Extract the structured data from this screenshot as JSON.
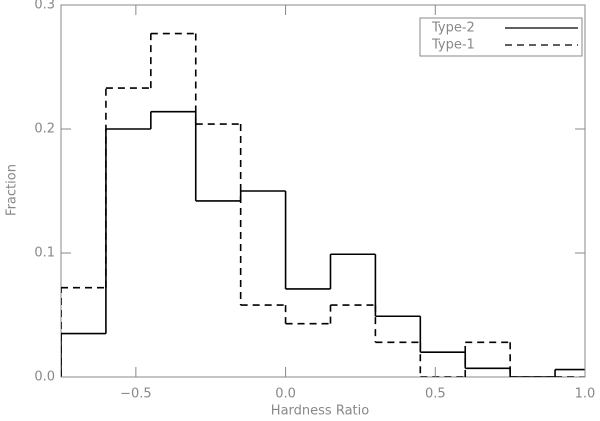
{
  "chart_data": {
    "type": "histogram",
    "xlabel": "Hardness Ratio",
    "ylabel": "Fraction",
    "bins": [
      -0.75,
      -0.6,
      -0.45,
      -0.3,
      -0.15,
      0.0,
      0.15,
      0.3,
      0.45,
      0.6,
      0.75,
      0.9,
      1.05
    ],
    "series": [
      {
        "name": "Type-2",
        "color": "#000000",
        "dash": "solid",
        "values": [
          0.035,
          0.2,
          0.214,
          0.142,
          0.15,
          0.071,
          0.099,
          0.049,
          0.02,
          0.007,
          0,
          0.006
        ]
      },
      {
        "name": "Type-1",
        "color": "#000000",
        "dash": "dashed",
        "values": [
          0.072,
          0.233,
          0.277,
          0.204,
          0.058,
          0.043,
          0.058,
          0.028,
          0,
          0.028,
          0,
          0
        ]
      }
    ],
    "xlim": [
      -0.75,
      1.0
    ],
    "ylim": [
      0,
      0.3
    ],
    "xticks": [
      {
        "value": -0.5,
        "label": "−0.5"
      },
      {
        "value": 0,
        "label": "0.0"
      },
      0.5,
      {
        "value": 1,
        "label": "1.0"
      }
    ],
    "yticks": [
      {
        "value": 0,
        "label": "0.0"
      },
      0.1,
      0.2,
      0.3
    ],
    "legend": "upper right"
  }
}
